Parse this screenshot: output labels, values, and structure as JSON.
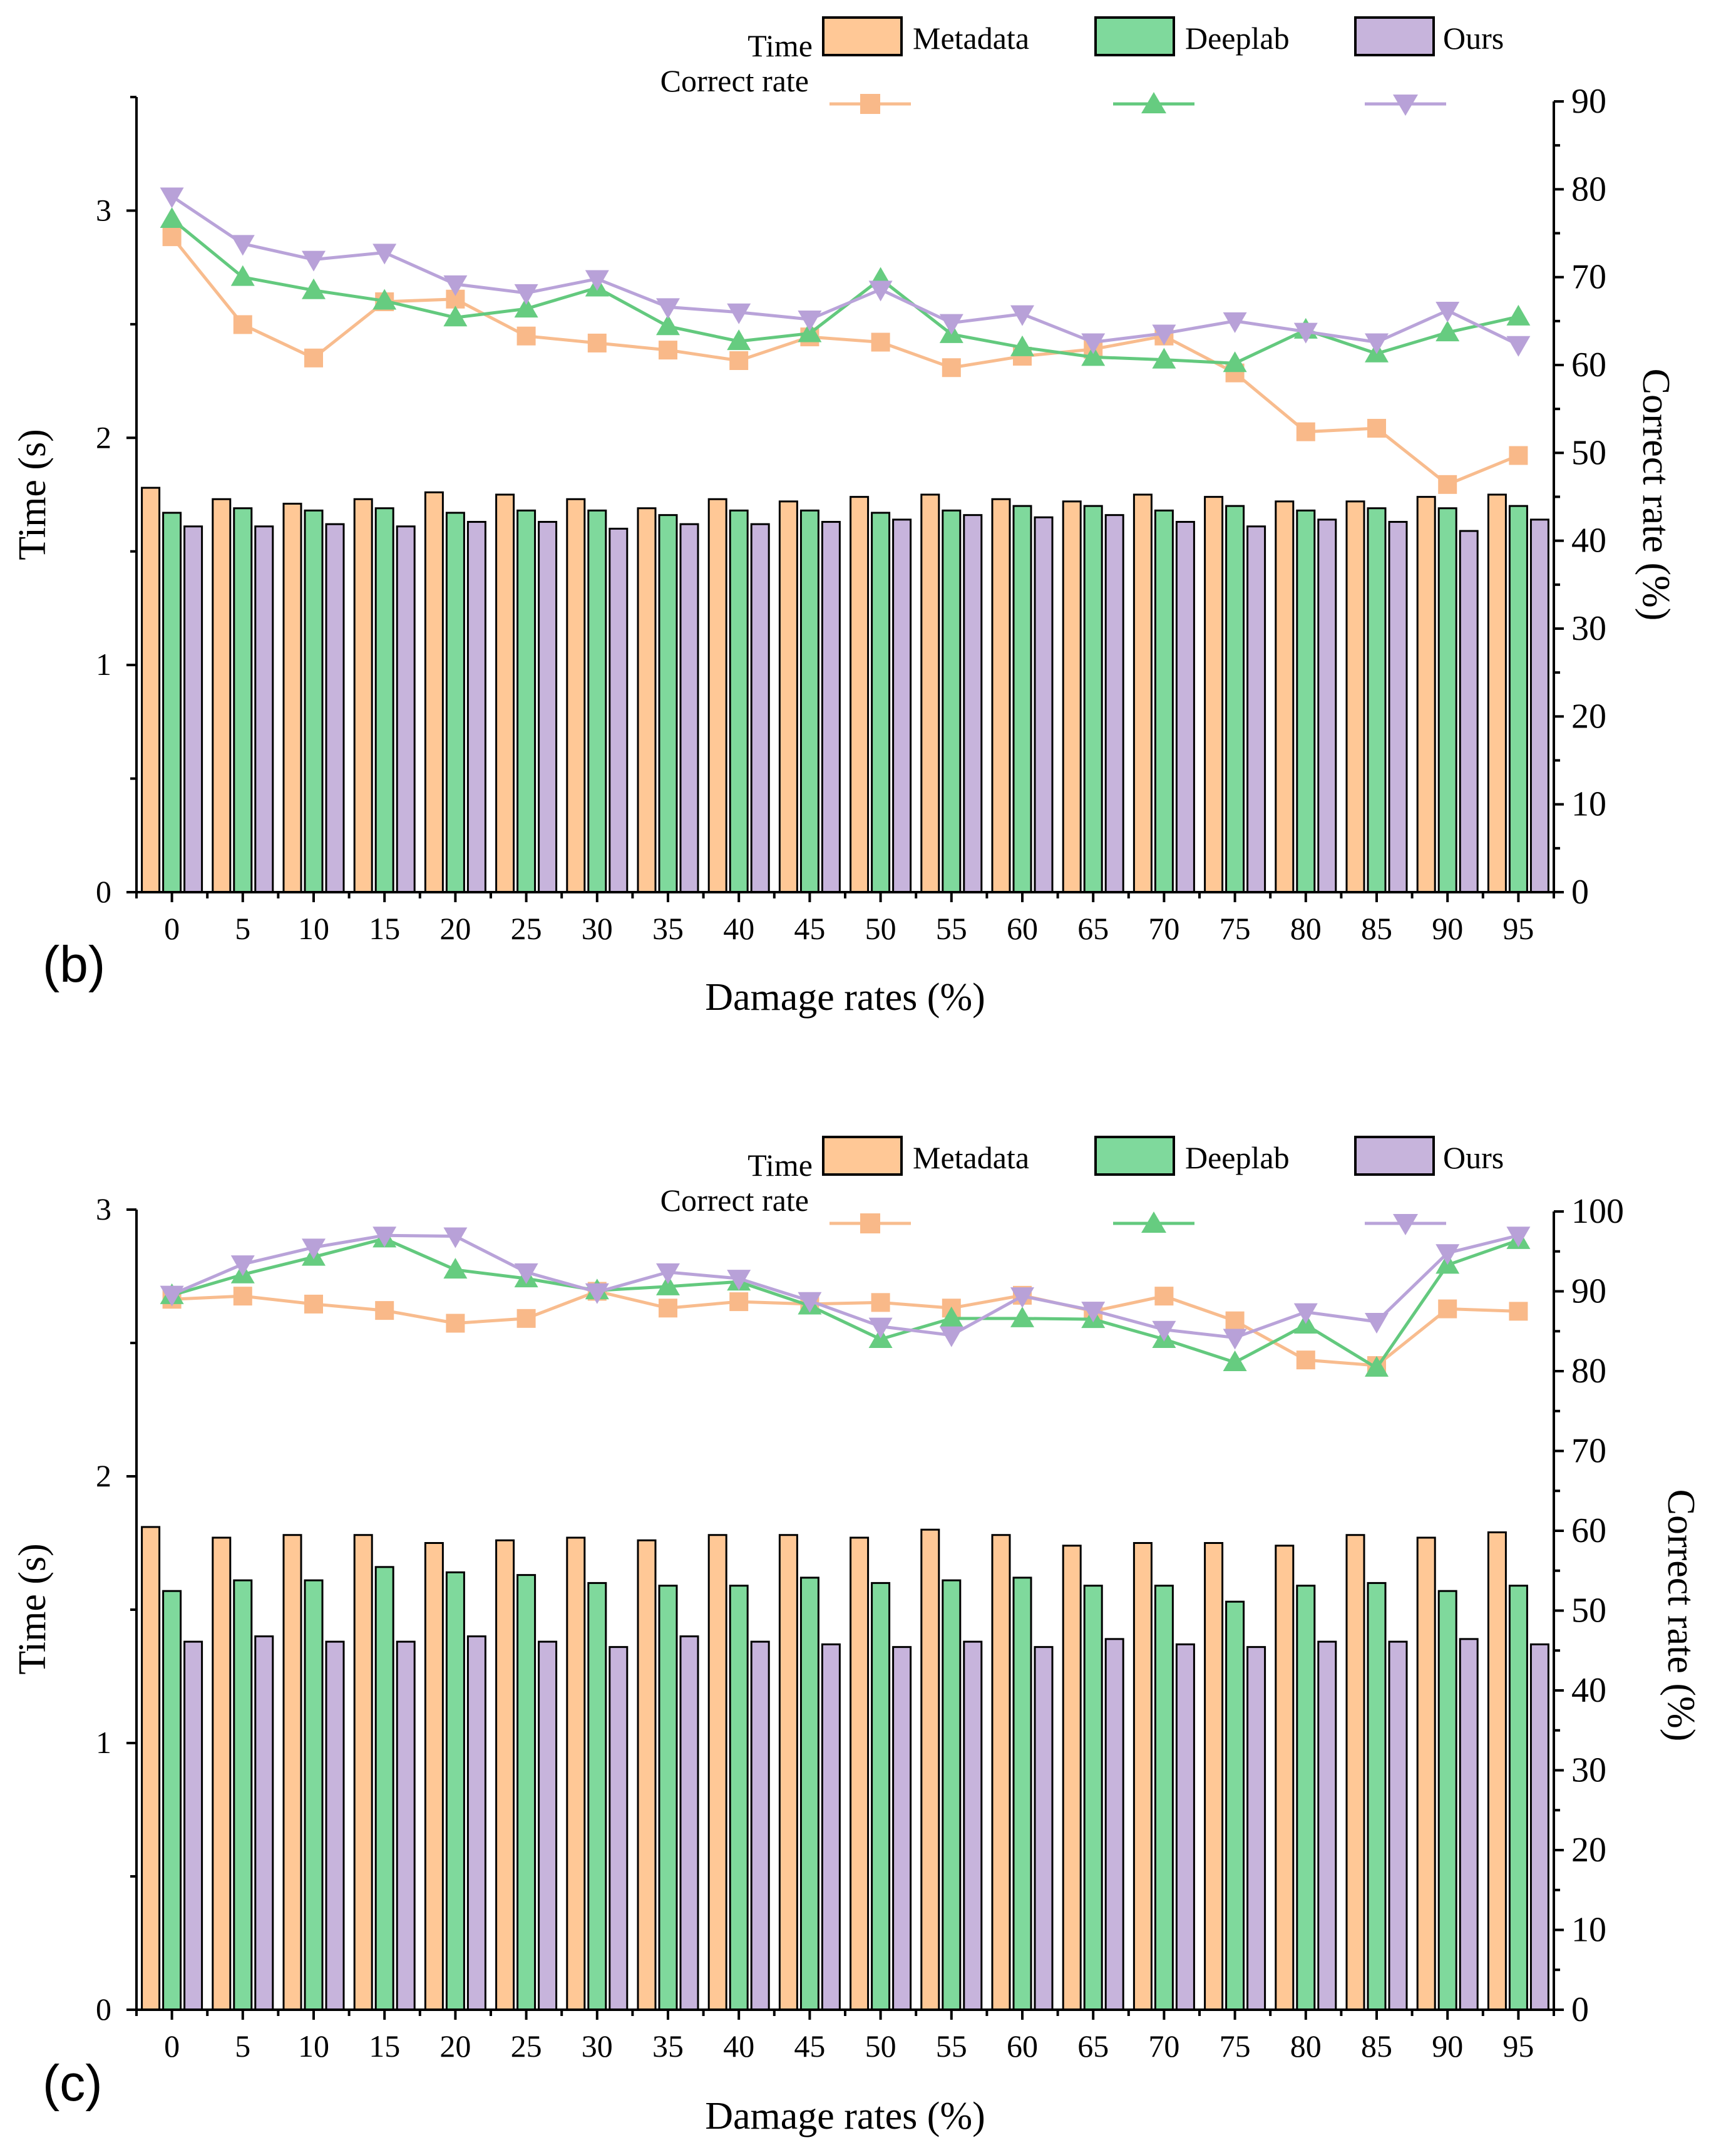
{
  "colors": {
    "metadata": "#FFC896",
    "deeplab": "#7FD99C",
    "ours": "#C7B4DC",
    "axis": "#000000"
  },
  "chart_data": [
    {
      "type": "bar",
      "panel_label": "(b)",
      "title": "",
      "xlabel": "Damage rates (%)",
      "ylabel": "Time (s)",
      "y2label": "Correct rate (%)",
      "legend_row1_title": "Time",
      "legend_row2_title": "Correct rate",
      "categories": [
        "0",
        "5",
        "10",
        "15",
        "20",
        "25",
        "30",
        "35",
        "40",
        "45",
        "50",
        "55",
        "60",
        "65",
        "70",
        "75",
        "80",
        "85",
        "90",
        "95"
      ],
      "ylim": [
        0,
        3.5
      ],
      "yticks": [
        "0",
        "1",
        "2",
        "3"
      ],
      "y2lim": [
        0,
        90
      ],
      "y2ticks": [
        "0",
        "10",
        "20",
        "30",
        "40",
        "50",
        "60",
        "70",
        "80",
        "90"
      ],
      "series": [
        {
          "name": "Metadata",
          "kind": "time",
          "values": [
            1.78,
            1.73,
            1.71,
            1.73,
            1.76,
            1.75,
            1.73,
            1.69,
            1.73,
            1.72,
            1.74,
            1.75,
            1.73,
            1.72,
            1.75,
            1.74,
            1.72,
            1.72,
            1.74,
            1.75
          ]
        },
        {
          "name": "Deeplab",
          "kind": "time",
          "values": [
            1.67,
            1.69,
            1.68,
            1.69,
            1.67,
            1.68,
            1.68,
            1.66,
            1.68,
            1.68,
            1.67,
            1.68,
            1.7,
            1.7,
            1.68,
            1.7,
            1.68,
            1.69,
            1.69,
            1.7
          ]
        },
        {
          "name": "Ours",
          "kind": "time",
          "values": [
            1.61,
            1.61,
            1.62,
            1.61,
            1.63,
            1.63,
            1.6,
            1.62,
            1.62,
            1.63,
            1.64,
            1.66,
            1.65,
            1.66,
            1.63,
            1.61,
            1.64,
            1.63,
            1.59,
            1.64
          ]
        },
        {
          "name": "Metadata",
          "kind": "correct",
          "marker": "square",
          "values": [
            74.6,
            64.6,
            60.8,
            67.2,
            67.5,
            63.3,
            62.5,
            61.7,
            60.5,
            63.2,
            62.6,
            59.7,
            61.0,
            61.8,
            63.3,
            59.1,
            52.4,
            52.8,
            46.4,
            49.7
          ]
        },
        {
          "name": "Deeplab",
          "kind": "correct",
          "marker": "triangle-up",
          "values": [
            76.6,
            70.0,
            68.5,
            67.3,
            65.4,
            66.4,
            68.8,
            64.4,
            62.7,
            63.6,
            69.8,
            63.5,
            62.0,
            60.9,
            60.6,
            60.2,
            64.0,
            61.3,
            63.7,
            65.5
          ]
        },
        {
          "name": "Ours",
          "kind": "correct",
          "marker": "triangle-down",
          "values": [
            79.2,
            73.8,
            72.0,
            72.8,
            69.2,
            68.2,
            69.8,
            66.6,
            66.0,
            65.2,
            68.6,
            64.8,
            65.8,
            62.6,
            63.6,
            65.0,
            63.8,
            62.6,
            66.2,
            62.3
          ]
        }
      ]
    },
    {
      "type": "bar",
      "panel_label": "(c)",
      "title": "",
      "xlabel": "Damage rates (%)",
      "ylabel": "Time (s)",
      "y2label": "Correct rate (%)",
      "legend_row1_title": "Time",
      "legend_row2_title": "Correct rate",
      "categories": [
        "0",
        "5",
        "10",
        "15",
        "20",
        "25",
        "30",
        "35",
        "40",
        "45",
        "50",
        "55",
        "60",
        "65",
        "70",
        "75",
        "80",
        "85",
        "90",
        "95"
      ],
      "ylim": [
        0,
        3.0
      ],
      "yticks": [
        "0",
        "1",
        "2",
        "3"
      ],
      "y2lim": [
        0,
        100
      ],
      "y2ticks": [
        "0",
        "10",
        "20",
        "30",
        "40",
        "50",
        "60",
        "70",
        "80",
        "90",
        "100"
      ],
      "series": [
        {
          "name": "Metadata",
          "kind": "time",
          "values": [
            1.81,
            1.77,
            1.78,
            1.78,
            1.75,
            1.76,
            1.77,
            1.76,
            1.78,
            1.78,
            1.77,
            1.8,
            1.78,
            1.74,
            1.75,
            1.75,
            1.74,
            1.78,
            1.77,
            1.79
          ]
        },
        {
          "name": "Deeplab",
          "kind": "time",
          "values": [
            1.57,
            1.61,
            1.61,
            1.66,
            1.64,
            1.63,
            1.6,
            1.59,
            1.59,
            1.62,
            1.6,
            1.61,
            1.62,
            1.59,
            1.59,
            1.53,
            1.59,
            1.6,
            1.57,
            1.59
          ]
        },
        {
          "name": "Ours",
          "kind": "time",
          "values": [
            1.38,
            1.4,
            1.38,
            1.38,
            1.4,
            1.38,
            1.36,
            1.4,
            1.38,
            1.37,
            1.36,
            1.38,
            1.36,
            1.39,
            1.37,
            1.36,
            1.38,
            1.38,
            1.39,
            1.37
          ]
        },
        {
          "name": "Metadata",
          "kind": "correct",
          "marker": "square",
          "values": [
            89.0,
            89.4,
            88.4,
            87.6,
            86.0,
            86.6,
            90.0,
            87.9,
            88.7,
            88.4,
            88.6,
            87.9,
            89.5,
            87.5,
            89.4,
            86.3,
            81.4,
            80.7,
            87.8,
            87.5
          ]
        },
        {
          "name": "Deeplab",
          "kind": "correct",
          "marker": "triangle-up",
          "values": [
            89.5,
            92.1,
            94.3,
            96.6,
            92.7,
            91.6,
            90.1,
            90.6,
            91.2,
            88.2,
            84.0,
            86.6,
            86.6,
            86.5,
            84.0,
            81.1,
            85.8,
            80.4,
            93.3,
            96.4
          ]
        },
        {
          "name": "Ours",
          "kind": "correct",
          "marker": "triangle-down",
          "values": [
            89.6,
            93.4,
            95.5,
            97.0,
            96.9,
            92.4,
            89.9,
            92.4,
            91.6,
            88.8,
            85.6,
            84.5,
            89.4,
            87.6,
            85.2,
            84.2,
            87.4,
            86.2,
            94.8,
            97.0
          ]
        }
      ]
    }
  ]
}
